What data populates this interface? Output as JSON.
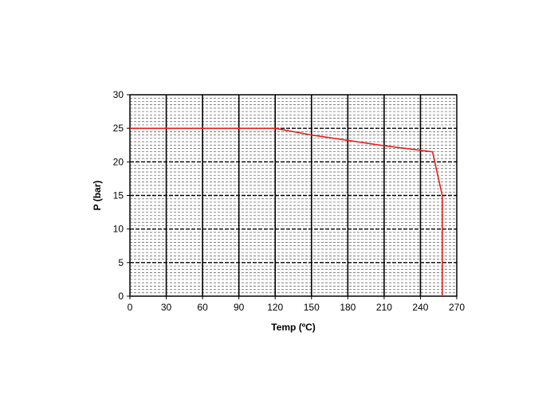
{
  "chart_data": {
    "type": "line",
    "title": "",
    "xlabel": "Temp (ºC)",
    "ylabel": "P (bar)",
    "xlim": [
      0,
      270
    ],
    "ylim": [
      0,
      30
    ],
    "x_ticks": [
      0,
      30,
      60,
      90,
      120,
      150,
      180,
      210,
      240,
      270
    ],
    "y_ticks": [
      0,
      5,
      10,
      15,
      20,
      25,
      30
    ],
    "grid": true,
    "legend": "none",
    "series": [
      {
        "color": "#e8201c",
        "points": [
          [
            0,
            25
          ],
          [
            120,
            25
          ],
          [
            150,
            24
          ],
          [
            180,
            23.2
          ],
          [
            210,
            22.4
          ],
          [
            250,
            21.5
          ],
          [
            258,
            15
          ],
          [
            258,
            0
          ]
        ]
      }
    ]
  }
}
